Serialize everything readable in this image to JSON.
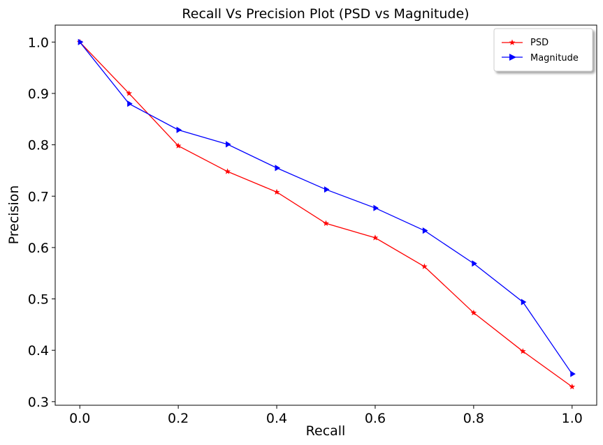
{
  "chart_data": {
    "type": "line",
    "title": "Recall Vs Precision Plot (PSD vs Magnitude)",
    "xlabel": "Recall",
    "ylabel": "Precision",
    "xlim": [
      -0.05,
      1.05
    ],
    "ylim": [
      0.293,
      1.033
    ],
    "xticks": [
      0.0,
      0.2,
      0.4,
      0.6,
      0.8,
      1.0
    ],
    "xtick_labels": [
      "0.0",
      "0.2",
      "0.4",
      "0.6",
      "0.8",
      "1.0"
    ],
    "yticks": [
      0.3,
      0.4,
      0.5,
      0.6,
      0.7,
      0.8,
      0.9,
      1.0
    ],
    "ytick_labels": [
      "0.3",
      "0.4",
      "0.5",
      "0.6",
      "0.7",
      "0.8",
      "0.9",
      "1.0"
    ],
    "grid": false,
    "legend_position": "top-right",
    "x": [
      0.0,
      0.1,
      0.2,
      0.3,
      0.4,
      0.5,
      0.6,
      0.7,
      0.8,
      0.9,
      1.0
    ],
    "series": [
      {
        "name": "PSD",
        "color": "#ff0000",
        "marker": "star",
        "values": [
          1.0,
          0.9,
          0.798,
          0.748,
          0.708,
          0.647,
          0.619,
          0.563,
          0.473,
          0.398,
          0.329
        ]
      },
      {
        "name": "Magnitude",
        "color": "#0000ff",
        "marker": "triangle-right",
        "values": [
          1.0,
          0.88,
          0.829,
          0.801,
          0.755,
          0.713,
          0.677,
          0.633,
          0.569,
          0.494,
          0.354
        ]
      }
    ]
  }
}
